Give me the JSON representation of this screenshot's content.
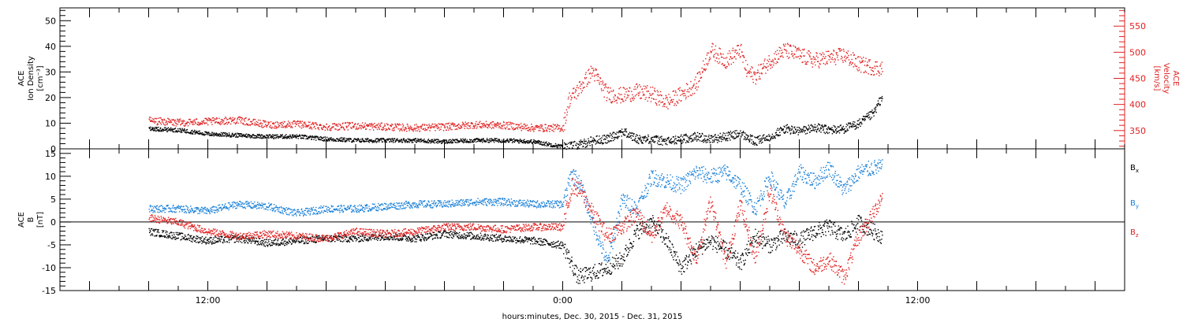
{
  "chart_data": [
    {
      "type": "scatter",
      "panel": "ion-density-velocity",
      "ylabel_lines": [
        "ACE",
        "Ion Density",
        "[cm⁻³]"
      ],
      "ylim": [
        0,
        55
      ],
      "yticks": [
        0,
        10,
        20,
        30,
        40,
        50
      ],
      "y2label_lines": [
        "ACE",
        "Velocity",
        "[km/s]"
      ],
      "y2lim": [
        315,
        585
      ],
      "y2ticks": [
        350,
        400,
        450,
        500,
        550
      ],
      "grid": false,
      "series": [
        {
          "axis": "left",
          "color": "#000000",
          "x": [
            -14,
            -13,
            -12,
            -11,
            -10,
            -9,
            -8,
            -7,
            -6,
            -5,
            -4,
            -3,
            -2,
            -1,
            0,
            0.5,
            1,
            1.5,
            2,
            2.5,
            3,
            3.5,
            4,
            4.5,
            5,
            5.5,
            6,
            6.5,
            7,
            7.5,
            8,
            8.5,
            9,
            9.5,
            10,
            10.5,
            10.8
          ],
          "y": [
            8,
            7.5,
            6,
            5.5,
            5,
            5,
            4,
            3.5,
            3.5,
            3.5,
            3,
            3.5,
            3.5,
            3,
            1,
            1.5,
            3.5,
            4,
            7,
            4,
            4,
            3,
            4,
            5,
            4,
            5,
            6,
            3,
            5,
            8,
            7,
            8.5,
            7.5,
            8,
            10,
            14,
            21
          ]
        },
        {
          "axis": "right",
          "color": "#e02020",
          "x": [
            -14,
            -13,
            -12,
            -11,
            -10,
            -9,
            -8,
            -7,
            -6,
            -5,
            -4,
            -3,
            -2,
            -1,
            0,
            0.2,
            0.5,
            1,
            1.5,
            2,
            2.5,
            3,
            3.5,
            4,
            4.5,
            5,
            5.5,
            6,
            6.2,
            6.5,
            7,
            7.5,
            8,
            8.5,
            9,
            9.5,
            10,
            10.5,
            10.8
          ],
          "y": [
            370,
            366,
            368,
            371,
            362,
            363,
            358,
            360,
            358,
            356,
            358,
            362,
            361,
            356,
            356,
            410,
            428,
            465,
            420,
            418,
            425,
            420,
            405,
            420,
            440,
            505,
            485,
            505,
            465,
            455,
            485,
            505,
            495,
            485,
            490,
            495,
            478,
            472,
            470
          ]
        }
      ]
    },
    {
      "type": "scatter",
      "panel": "magnetic-field",
      "ylabel_lines": [
        "ACE",
        "B",
        "[nT]"
      ],
      "ylim": [
        -15,
        16
      ],
      "yticks": [
        -15,
        -10,
        -5,
        0,
        5,
        10,
        15
      ],
      "grid": false,
      "zero_line": true,
      "legend_position": "right",
      "series": [
        {
          "name": "Bx",
          "color": "#000000",
          "x": [
            -14,
            -13,
            -12,
            -11,
            -10,
            -9,
            -8,
            -7,
            -6,
            -5,
            -4,
            -3,
            -2,
            -1,
            0,
            0.5,
            1,
            1.5,
            2,
            2.5,
            3,
            3.5,
            4,
            4.5,
            5,
            5.5,
            6,
            6.5,
            7,
            7.5,
            8,
            8.5,
            9,
            9.5,
            10,
            10.5,
            10.8
          ],
          "y": [
            -2,
            -3,
            -4,
            -3.5,
            -4.5,
            -4,
            -3.5,
            -3.5,
            -3,
            -3.5,
            -2.5,
            -3,
            -3.5,
            -4,
            -5,
            -12,
            -11,
            -10,
            -8,
            -2,
            0,
            -4,
            -10,
            -6,
            -4,
            -6,
            -9,
            -3,
            -5,
            -3,
            -4,
            -2,
            -1,
            -3,
            0,
            -2,
            -3
          ]
        },
        {
          "name": "By",
          "color": "#1a80d8",
          "x": [
            -14,
            -13,
            -12,
            -11,
            -10,
            -9,
            -8,
            -7,
            -6,
            -5,
            -4,
            -3,
            -2,
            -1,
            0,
            0.3,
            0.6,
            1,
            1.5,
            2,
            2.5,
            3,
            3.5,
            4,
            4.5,
            5,
            5.5,
            6,
            6.5,
            7,
            7.5,
            8,
            8.5,
            9,
            9.5,
            10,
            10.5,
            10.8
          ],
          "y": [
            3,
            3,
            2.5,
            4,
            3.5,
            2,
            3,
            3,
            3.5,
            4,
            4,
            4.5,
            4.5,
            4,
            4,
            11,
            8,
            0,
            -9,
            5,
            3,
            10,
            9,
            8,
            11,
            10,
            11,
            8,
            3,
            10,
            4,
            11,
            9,
            12,
            7,
            11,
            12,
            12
          ]
        },
        {
          "name": "Bz",
          "color": "#e02020",
          "x": [
            -14,
            -13,
            -12,
            -11,
            -10,
            -9,
            -8,
            -7,
            -6,
            -5,
            -4,
            -3,
            -2,
            -1,
            0,
            0.3,
            0.6,
            1,
            1.5,
            2,
            2.5,
            3,
            3.5,
            4,
            4.5,
            5,
            5.5,
            6,
            6.5,
            7,
            7.5,
            8,
            8.5,
            9,
            9.5,
            10,
            10.5,
            10.8
          ],
          "y": [
            1,
            0,
            -2,
            -3,
            -2.5,
            -3,
            -3.5,
            -2,
            -2.5,
            -2,
            -1,
            -1,
            -1.5,
            -1,
            -1,
            8,
            7,
            2,
            -3,
            -1,
            2,
            -3,
            3,
            0,
            -8,
            5,
            -9,
            4,
            -8,
            7,
            -3,
            -6,
            -10,
            -8,
            -12,
            -3,
            2,
            6
          ]
        }
      ],
      "legend": [
        {
          "label": "B",
          "sub": "x",
          "color": "#000000"
        },
        {
          "label": "B",
          "sub": "y",
          "color": "#1a80d8"
        },
        {
          "label": "B",
          "sub": "z",
          "color": "#e02020"
        }
      ]
    }
  ],
  "time_axis": {
    "xlim": [
      -17,
      19
    ],
    "tick_hours": [
      -17,
      -16,
      -15,
      -14,
      -13,
      -12,
      -11,
      -10,
      -9,
      -8,
      -7,
      -6,
      -5,
      -4,
      -3,
      -2,
      -1,
      0,
      1,
      2,
      3,
      4,
      5,
      6,
      7,
      8,
      9,
      10,
      11,
      12,
      13,
      14,
      15,
      16,
      17,
      18,
      19
    ],
    "major_every_hours": 2,
    "labels": [
      {
        "hour": -12,
        "text": "12:00"
      },
      {
        "hour": 0,
        "text": "0:00"
      },
      {
        "hour": 12,
        "text": "12:00"
      }
    ],
    "xlabel": "hours:minutes, Dec. 30, 2015 - Dec. 31, 2015"
  }
}
